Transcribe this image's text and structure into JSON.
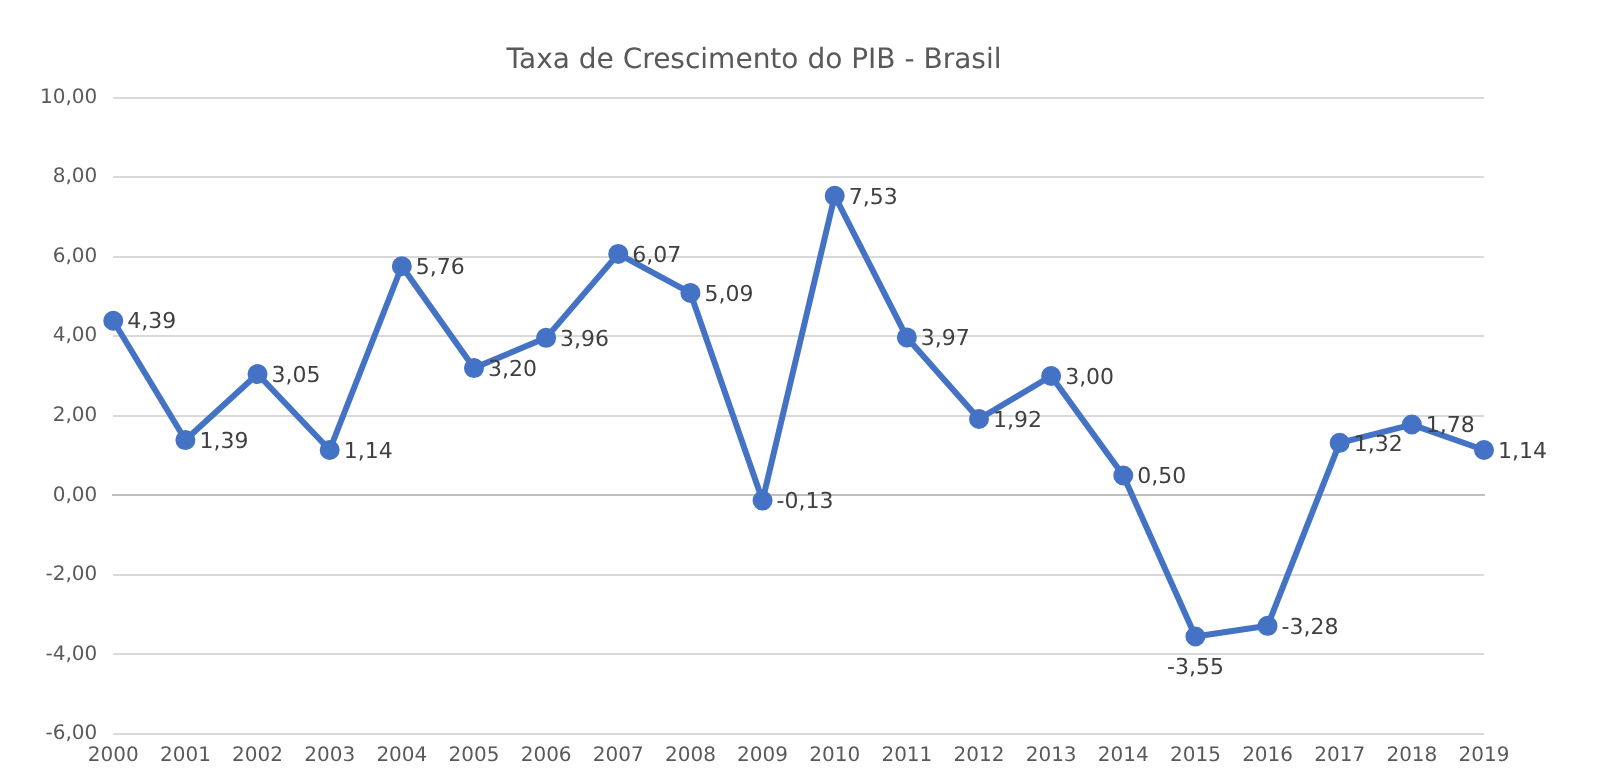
{
  "chart_data": {
    "type": "line",
    "title": "Taxa de Crescimento do PIB - Brasil",
    "categories": [
      "2000",
      "2001",
      "2002",
      "2003",
      "2004",
      "2005",
      "2006",
      "2007",
      "2008",
      "2009",
      "2010",
      "2011",
      "2012",
      "2013",
      "2014",
      "2015",
      "2016",
      "2017",
      "2018",
      "2019"
    ],
    "series": [
      {
        "color": "#4472c4",
        "values": [
          4.39,
          1.39,
          3.05,
          1.14,
          5.76,
          3.2,
          3.96,
          6.07,
          5.09,
          -0.13,
          7.53,
          3.97,
          1.92,
          3.0,
          0.5,
          -3.55,
          -3.28,
          1.32,
          1.78,
          1.14
        ],
        "value_labels": [
          "4,39",
          "1,39",
          "3,05",
          "1,14",
          "5,76",
          "3,20",
          "3,96",
          "6,07",
          "5,09",
          "-0,13",
          "7,53",
          "3,97",
          "1,92",
          "3,00",
          "0,50",
          "-3,55",
          "-3,28",
          "1,32",
          "1,78",
          "1,14"
        ]
      }
    ],
    "ylim": [
      -6,
      10
    ],
    "yticks": [
      {
        "value": -6,
        "label": "-6,00"
      },
      {
        "value": -4,
        "label": "-4,00"
      },
      {
        "value": -2,
        "label": "-2,00"
      },
      {
        "value": 0,
        "label": "0,00"
      },
      {
        "value": 2,
        "label": "2,00"
      },
      {
        "value": 4,
        "label": "4,00"
      },
      {
        "value": 6,
        "label": "6,00"
      },
      {
        "value": 8,
        "label": "8,00"
      },
      {
        "value": 10,
        "label": "10,00"
      }
    ],
    "grid": "y",
    "legend": false,
    "marker": "circle",
    "line_style": "solid"
  }
}
